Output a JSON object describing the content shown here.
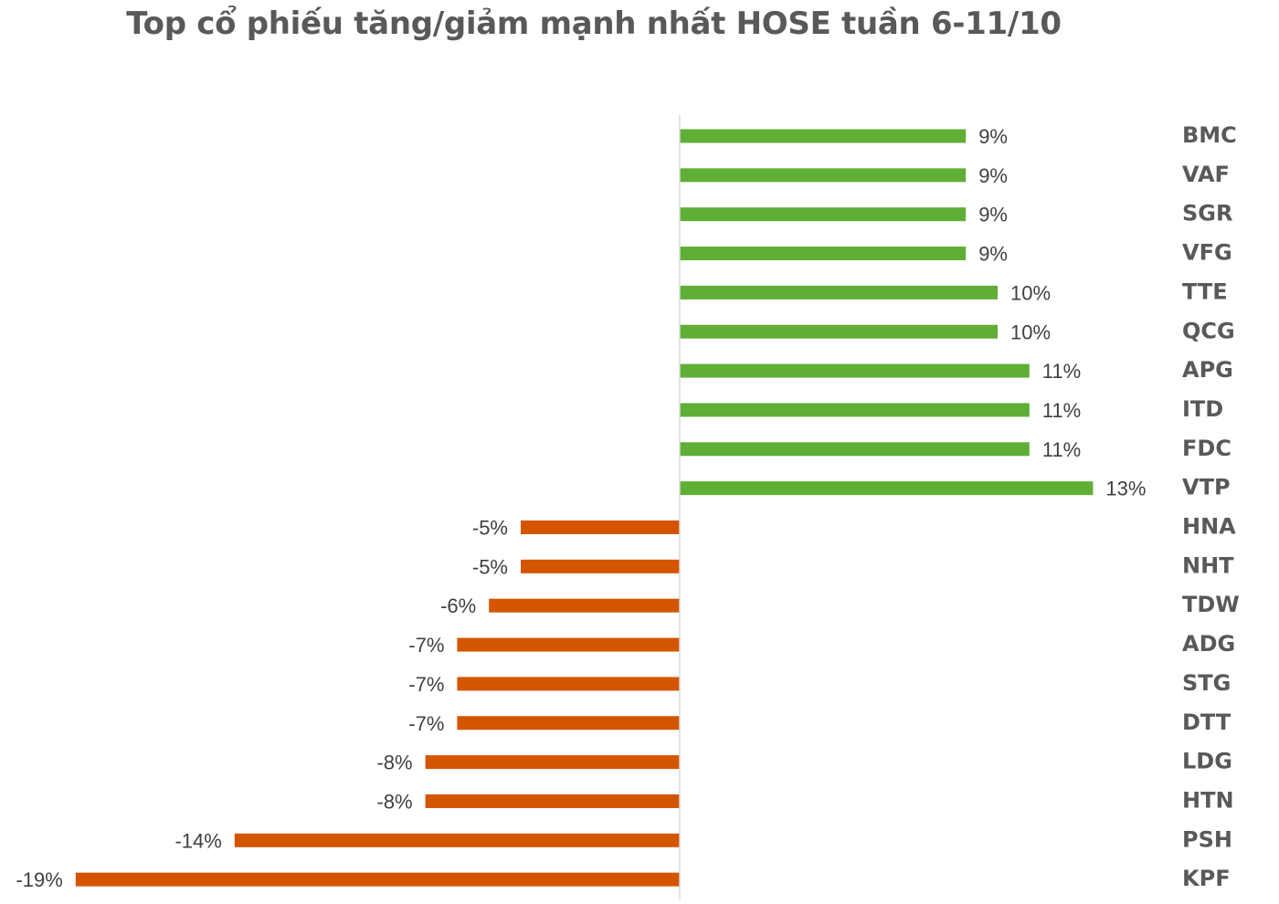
{
  "chart_data": {
    "type": "bar",
    "orientation": "horizontal",
    "title": "Top cổ phiếu tăng/giảm mạnh nhất HOSE tuần 6-11/10",
    "categories": [
      "BMC",
      "VAF",
      "SGR",
      "VFG",
      "TTE",
      "QCG",
      "APG",
      "ITD",
      "FDC",
      "VTP",
      "HNA",
      "NHT",
      "TDW",
      "ADG",
      "STG",
      "DTT",
      "LDG",
      "HTN",
      "PSH",
      "KPF"
    ],
    "values": [
      9,
      9,
      9,
      9,
      10,
      10,
      11,
      11,
      11,
      13,
      -5,
      -5,
      -6,
      -7,
      -7,
      -7,
      -8,
      -8,
      -14,
      -19
    ],
    "value_labels": [
      "9%",
      "9%",
      "9%",
      "9%",
      "10%",
      "10%",
      "11%",
      "11%",
      "11%",
      "13%",
      "-5%",
      "-5%",
      "-6%",
      "-7%",
      "-7%",
      "-7%",
      "-8%",
      "-8%",
      "-14%",
      "-19%"
    ],
    "unit": "%",
    "xlim": [
      -19,
      13
    ],
    "category_labels_position": "right",
    "grid": false,
    "legend": "none",
    "colors": {
      "positive": "#5FAE35",
      "negative": "#D45500",
      "axis": "#D9D9D9"
    }
  }
}
